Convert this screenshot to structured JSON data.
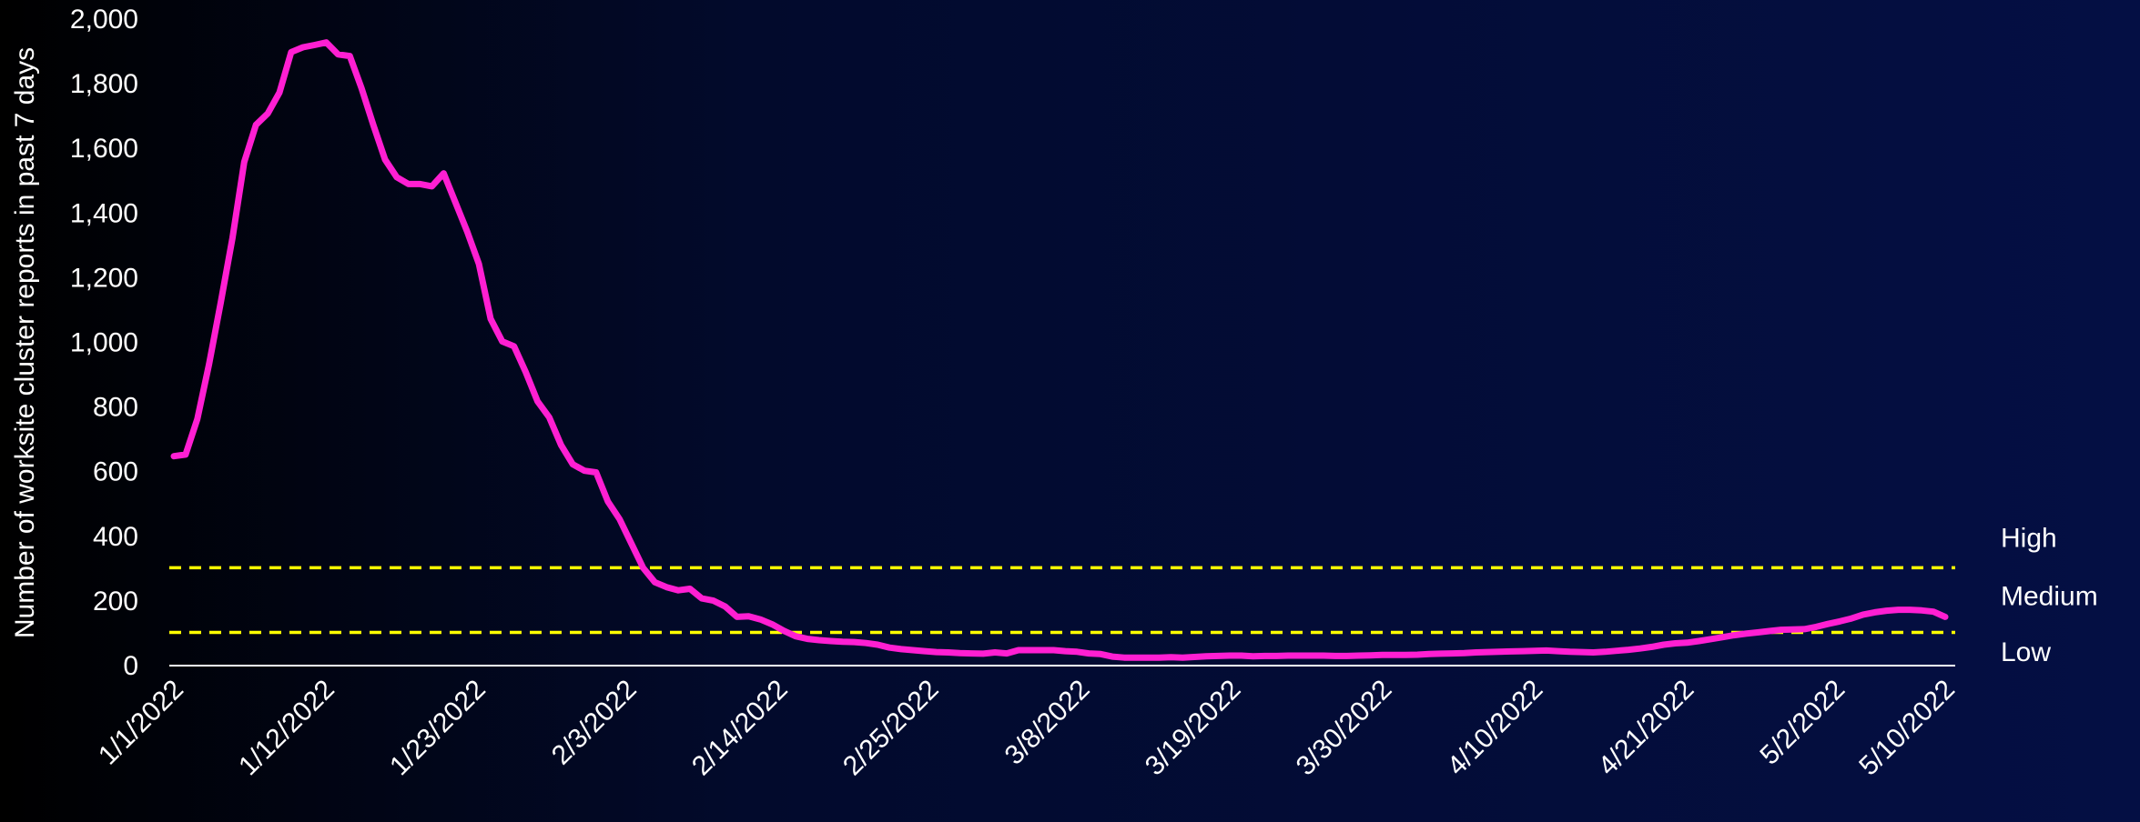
{
  "chart_data": {
    "type": "line",
    "title": "",
    "xlabel": "",
    "ylabel": "Number of worksite cluster reports in past 7 days",
    "ylim": [
      0,
      2000
    ],
    "yticks": [
      0,
      200,
      400,
      600,
      800,
      1000,
      1200,
      1400,
      1600,
      1800,
      2000
    ],
    "ytick_labels": [
      "0",
      "200",
      "400",
      "600",
      "800",
      "1,000",
      "1,200",
      "1,400",
      "1,600",
      "1,800",
      "2,000"
    ],
    "x_start": "1/1/2022",
    "x_end": "5/10/2022",
    "xtick_labels": [
      "1/1/2022",
      "1/12/2022",
      "1/23/2022",
      "2/3/2022",
      "2/14/2022",
      "2/25/2022",
      "3/8/2022",
      "3/19/2022",
      "3/30/2022",
      "4/10/2022",
      "4/21/2022",
      "5/2/2022",
      "5/10/2022"
    ],
    "grid": false,
    "series": [
      {
        "name": "",
        "color": "#ff1fd2",
        "values": [
          645,
          650,
          760,
          930,
          1120,
          1320,
          1555,
          1670,
          1705,
          1770,
          1895,
          1910,
          1917,
          1925,
          1888,
          1883,
          1783,
          1670,
          1563,
          1508,
          1487,
          1487,
          1480,
          1520,
          1430,
          1340,
          1240,
          1070,
          1000,
          985,
          905,
          815,
          765,
          680,
          620,
          600,
          595,
          505,
          450,
          375,
          300,
          255,
          240,
          230,
          235,
          205,
          198,
          180,
          148,
          150,
          140,
          125,
          105,
          88,
          80,
          76,
          73,
          71,
          70,
          67,
          62,
          53,
          48,
          45,
          42,
          39,
          38,
          36,
          35,
          34,
          38,
          35,
          45,
          45,
          45,
          45,
          42,
          40,
          35,
          33,
          25,
          22,
          22,
          22,
          22,
          23,
          22,
          24,
          26,
          27,
          28,
          28,
          26,
          27,
          27,
          28,
          28,
          28,
          28,
          27,
          27,
          28,
          29,
          30,
          30,
          30,
          31,
          33,
          34,
          35,
          36,
          38,
          39,
          40,
          41,
          42,
          43,
          44,
          42,
          40,
          39,
          38,
          40,
          43,
          46,
          50,
          55,
          62,
          66,
          68,
          73,
          79,
          85,
          91,
          96,
          100,
          104,
          108,
          109,
          110,
          117,
          126,
          134,
          143,
          155,
          162,
          167,
          170,
          170,
          168,
          164,
          148
        ]
      }
    ],
    "thresholds": [
      {
        "value": 300,
        "color": "#ffff00",
        "style": "dashed"
      },
      {
        "value": 100,
        "color": "#ffff00",
        "style": "dashed"
      }
    ],
    "threshold_labels": [
      {
        "text": "High",
        "value": 395
      },
      {
        "text": "Medium",
        "value": 215
      },
      {
        "text": "Low",
        "value": 42
      }
    ]
  }
}
